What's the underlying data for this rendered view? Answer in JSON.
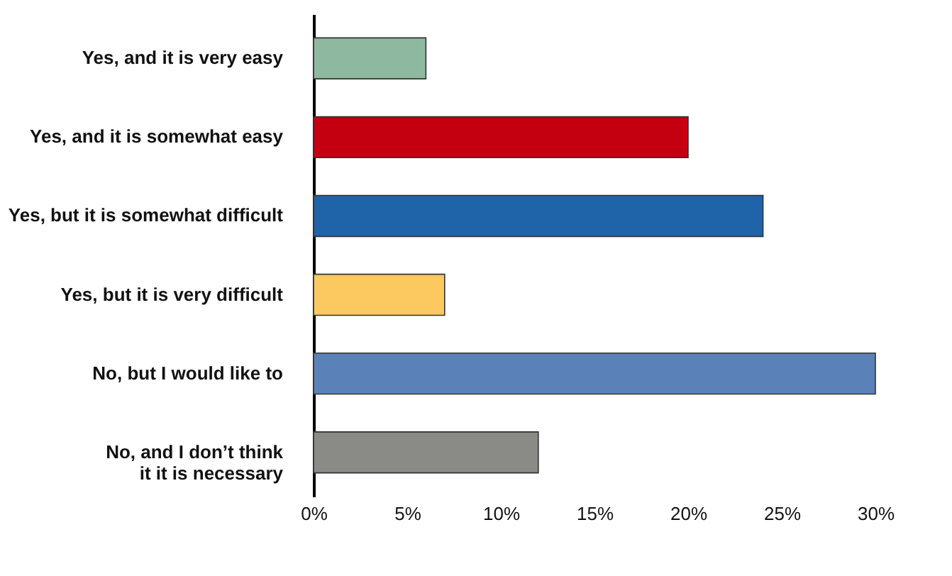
{
  "chart_data": {
    "type": "bar",
    "orientation": "horizontal",
    "categories": [
      "Yes, and it is very easy",
      "Yes, and it is somewhat easy",
      "Yes, but it is somewhat difficult",
      "Yes, but it is very difficult",
      "No, but I would like to",
      "No, and I don’t think it it is necessary"
    ],
    "values": [
      6,
      20,
      24,
      7,
      30,
      12
    ],
    "colors": [
      "#8fb8a0",
      "#c40010",
      "#1f63a8",
      "#fcc860",
      "#5b82b8",
      "#8a8a86"
    ],
    "xlim": [
      0,
      30
    ],
    "xticks": [
      {
        "value": 0,
        "label": "0%"
      },
      {
        "value": 5,
        "label": "5%"
      },
      {
        "value": 10,
        "label": "10%"
      },
      {
        "value": 15,
        "label": "15%"
      },
      {
        "value": 20,
        "label": "20%"
      },
      {
        "value": 25,
        "label": "25%"
      },
      {
        "value": 30,
        "label": "30%"
      }
    ],
    "grid": false
  }
}
